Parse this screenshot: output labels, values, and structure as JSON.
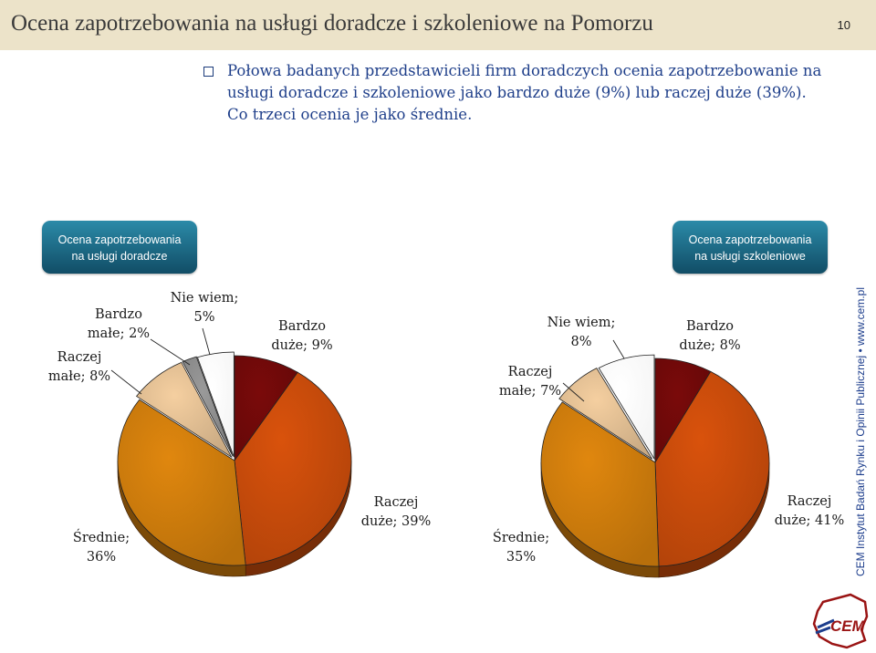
{
  "header": {
    "title": "Ocena zapotrzebowania na usługi doradcze i szkoleniowe na Pomorzu",
    "page_number": "10"
  },
  "intro_text": "Połowa badanych przedstawicieli firm doradczych ocenia zapotrzebowanie na usługi doradcze i szkoleniowe jako bardzo duże (9%) lub raczej duże (39%). Co trzeci ocenia je jako średnie.",
  "side_credit": "CEM Instytut Badań Rynku i Opinii Publicznej • www.cem.pl",
  "logo_text": "CEM",
  "colors": {
    "bardzo_duze": "#7a0a0a",
    "raczej_duze": "#d9520c",
    "srednie": "#e0870e",
    "raczej_male": "#f5cfa0",
    "bardzo_male": "#9a9a9a",
    "nie_wiem": "#ffffff",
    "badge": "#1b6a88"
  },
  "chart_data": [
    {
      "type": "pie",
      "title": "Ocena zapotrzebowania na usługi doradcze",
      "title_lines": [
        "Ocena zapotrzebowania",
        "na usługi doradcze"
      ],
      "slices": [
        {
          "key": "bardzo_duze",
          "label": "Bardzo duże",
          "value": 9,
          "label_lines": [
            "Bardzo",
            "duże; 9%"
          ]
        },
        {
          "key": "raczej_duze",
          "label": "Raczej duże",
          "value": 39,
          "label_lines": [
            "Raczej",
            "duże; 39%"
          ]
        },
        {
          "key": "srednie",
          "label": "Średnie",
          "value": 36,
          "label_lines": [
            "Średnie;",
            "36%"
          ]
        },
        {
          "key": "raczej_male",
          "label": "Raczej małe",
          "value": 8,
          "label_lines": [
            "Raczej",
            "małe; 8%"
          ]
        },
        {
          "key": "bardzo_male",
          "label": "Bardzo małe",
          "value": 2,
          "label_lines": [
            "Bardzo",
            "małe; 2%"
          ]
        },
        {
          "key": "nie_wiem",
          "label": "Nie wiem",
          "value": 5,
          "label_lines": [
            "Nie wiem;",
            "5%"
          ]
        }
      ]
    },
    {
      "type": "pie",
      "title": "Ocena zapotrzebowania na usługi szkoleniowe",
      "title_lines": [
        "Ocena zapotrzebowania",
        "na usługi szkoleniowe"
      ],
      "slices": [
        {
          "key": "bardzo_duze",
          "label": "Bardzo duże",
          "value": 8,
          "label_lines": [
            "Bardzo",
            "duże; 8%"
          ]
        },
        {
          "key": "raczej_duze",
          "label": "Raczej duże",
          "value": 41,
          "label_lines": [
            "Raczej",
            "duże; 41%"
          ]
        },
        {
          "key": "srednie",
          "label": "Średnie",
          "value": 35,
          "label_lines": [
            "Średnie;",
            "35%"
          ]
        },
        {
          "key": "raczej_male",
          "label": "Raczej małe",
          "value": 7,
          "label_lines": [
            "Raczej",
            "małe; 7%"
          ]
        },
        {
          "key": "nie_wiem",
          "label": "Nie wiem",
          "value": 8,
          "label_lines": [
            "Nie wiem;",
            "8%"
          ]
        }
      ]
    }
  ]
}
